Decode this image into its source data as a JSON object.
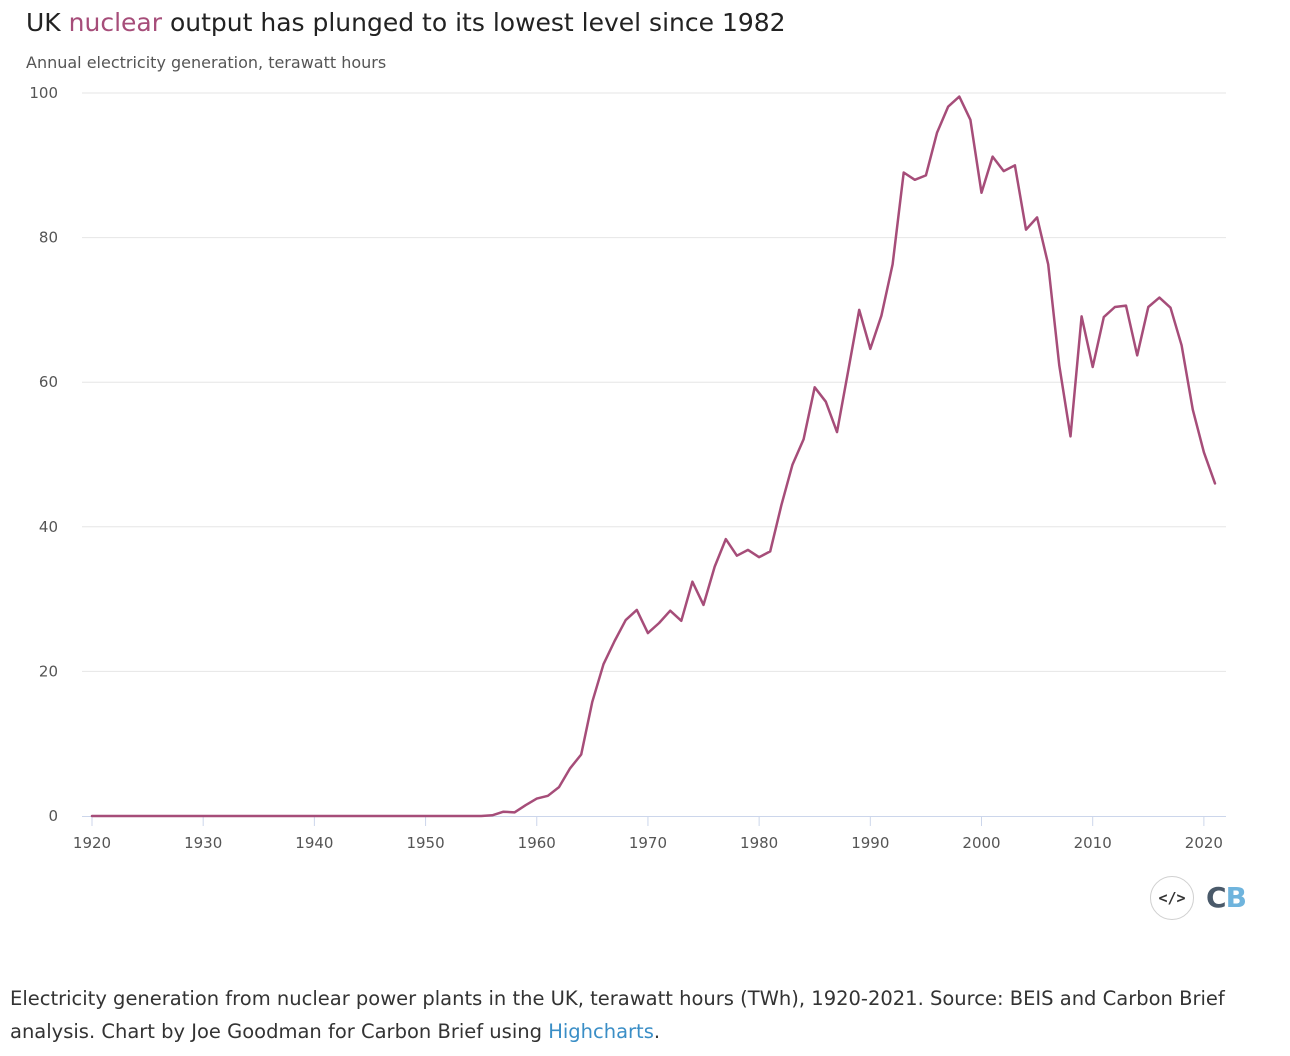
{
  "title": {
    "before": "UK ",
    "highlight": "nuclear",
    "after": " output has plunged to its lowest level since 1982"
  },
  "subtitle": "Annual electricity generation, terawatt hours",
  "colors": {
    "series": "#A64D79",
    "grid": "#e6e6e6",
    "axis": "#ccd6eb",
    "link": "#3a8ec6"
  },
  "chart_data": {
    "type": "line",
    "title": "UK nuclear output has plunged to its lowest level since 1982",
    "ylabel": "Annual electricity generation, terawatt hours",
    "xlabel": "",
    "xlim": [
      1920,
      2021
    ],
    "ylim": [
      0,
      100
    ],
    "x_ticks": [
      1920,
      1930,
      1940,
      1950,
      1960,
      1970,
      1980,
      1990,
      2000,
      2010,
      2020
    ],
    "y_ticks": [
      0,
      20,
      40,
      60,
      80,
      100
    ],
    "grid": true,
    "legend": "none",
    "series": [
      {
        "x": [
          1920,
          1921,
          1922,
          1923,
          1924,
          1925,
          1926,
          1927,
          1928,
          1929,
          1930,
          1931,
          1932,
          1933,
          1934,
          1935,
          1936,
          1937,
          1938,
          1939,
          1940,
          1941,
          1942,
          1943,
          1944,
          1945,
          1946,
          1947,
          1948,
          1949,
          1950,
          1951,
          1952,
          1953,
          1954,
          1955,
          1956,
          1957,
          1958,
          1959,
          1960,
          1961,
          1962,
          1963,
          1964,
          1965,
          1966,
          1967,
          1968,
          1969,
          1970,
          1971,
          1972,
          1973,
          1974,
          1975,
          1976,
          1977,
          1978,
          1979,
          1980,
          1981,
          1982,
          1983,
          1984,
          1985,
          1986,
          1987,
          1988,
          1989,
          1990,
          1991,
          1992,
          1993,
          1994,
          1995,
          1996,
          1997,
          1998,
          1999,
          2000,
          2001,
          2002,
          2003,
          2004,
          2005,
          2006,
          2007,
          2008,
          2009,
          2010,
          2011,
          2012,
          2013,
          2014,
          2015,
          2016,
          2017,
          2018,
          2019,
          2020,
          2021
        ],
        "values": [
          0,
          0,
          0,
          0,
          0,
          0,
          0,
          0,
          0,
          0,
          0,
          0,
          0,
          0,
          0,
          0,
          0,
          0,
          0,
          0,
          0,
          0,
          0,
          0,
          0,
          0,
          0,
          0,
          0,
          0,
          0,
          0,
          0,
          0,
          0,
          0,
          0.1,
          0.6,
          0.5,
          1.5,
          2.4,
          2.8,
          4.0,
          6.6,
          8.5,
          15.8,
          21.0,
          24.2,
          27.1,
          28.5,
          25.3,
          26.7,
          28.4,
          27.0,
          32.4,
          29.2,
          34.5,
          38.3,
          36.0,
          36.8,
          35.8,
          36.6,
          43.0,
          48.6,
          52.1,
          59.3,
          57.3,
          53.1,
          61.5,
          70.0,
          64.6,
          69.2,
          76.3,
          89.0,
          88.0,
          88.6,
          94.5,
          98.1,
          99.5,
          96.3,
          86.2,
          91.2,
          89.2,
          90.0,
          81.1,
          82.8,
          76.3,
          62.3,
          52.5,
          69.1,
          62.1,
          69.0,
          70.4,
          70.6,
          63.7,
          70.4,
          71.7,
          70.3,
          65.1,
          56.2,
          50.3,
          46.0
        ]
      }
    ]
  },
  "caption": {
    "text": "Electricity generation from nuclear power plants in the UK, terawatt hours (TWh), 1920-2021. Source: BEIS and Carbon Brief analysis. Chart by Joe Goodman for Carbon Brief using ",
    "link": "Highcharts",
    "end": "."
  },
  "embed_icon": "code-embed-icon",
  "embed_glyph": "</>",
  "logo": {
    "c": "C",
    "b": "B"
  }
}
